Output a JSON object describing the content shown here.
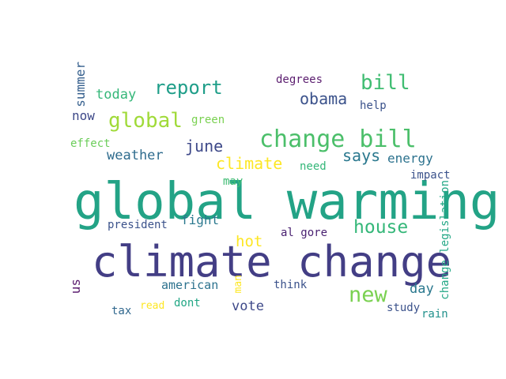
{
  "words": [
    {
      "text": "global warming",
      "color": "#23a386"
    },
    {
      "text": "climate change",
      "color": "#433e85"
    },
    {
      "text": "change bill",
      "color": "#4bbf6a"
    },
    {
      "text": "report",
      "color": "#1f9e89"
    },
    {
      "text": "bill",
      "color": "#40bd72"
    },
    {
      "text": "global",
      "color": "#a0da39"
    },
    {
      "text": "obama",
      "color": "#3b528b"
    },
    {
      "text": "house",
      "color": "#35b779"
    },
    {
      "text": "new",
      "color": "#7ad151"
    },
    {
      "text": "june",
      "color": "#3e4989"
    },
    {
      "text": "climate",
      "color": "#fde725"
    },
    {
      "text": "says",
      "color": "#2a788e"
    },
    {
      "text": "energy",
      "color": "#2c728e"
    },
    {
      "text": "today",
      "color": "#35b779"
    },
    {
      "text": "now",
      "color": "#3e4989"
    },
    {
      "text": "degrees",
      "color": "#5b1d6f"
    },
    {
      "text": "help",
      "color": "#3b528b"
    },
    {
      "text": "green",
      "color": "#7ad151"
    },
    {
      "text": "effect",
      "color": "#6ccd5a"
    },
    {
      "text": "weather",
      "color": "#2f6c8e"
    },
    {
      "text": "need",
      "color": "#35b779"
    },
    {
      "text": "impact",
      "color": "#3b528b"
    },
    {
      "text": "may",
      "color": "#3fbc73"
    },
    {
      "text": "fight",
      "color": "#2a788e"
    },
    {
      "text": "president",
      "color": "#3b528b"
    },
    {
      "text": "al gore",
      "color": "#481f70"
    },
    {
      "text": "hot",
      "color": "#fde725"
    },
    {
      "text": "american",
      "color": "#2c728e"
    },
    {
      "text": "think",
      "color": "#3b528b"
    },
    {
      "text": "day",
      "color": "#2a788e"
    },
    {
      "text": "vote",
      "color": "#3e4989"
    },
    {
      "text": "dont",
      "color": "#22a785"
    },
    {
      "text": "read",
      "color": "#fde725"
    },
    {
      "text": "tax",
      "color": "#31688e"
    },
    {
      "text": "study",
      "color": "#3b528b"
    },
    {
      "text": "rain",
      "color": "#21918c"
    },
    {
      "text": "summer",
      "color": "#355f8d"
    },
    {
      "text": "us",
      "color": "#5b1d6f"
    },
    {
      "text": "man",
      "color": "#fde725"
    },
    {
      "text": "change legislation",
      "color": "#22a785"
    }
  ]
}
